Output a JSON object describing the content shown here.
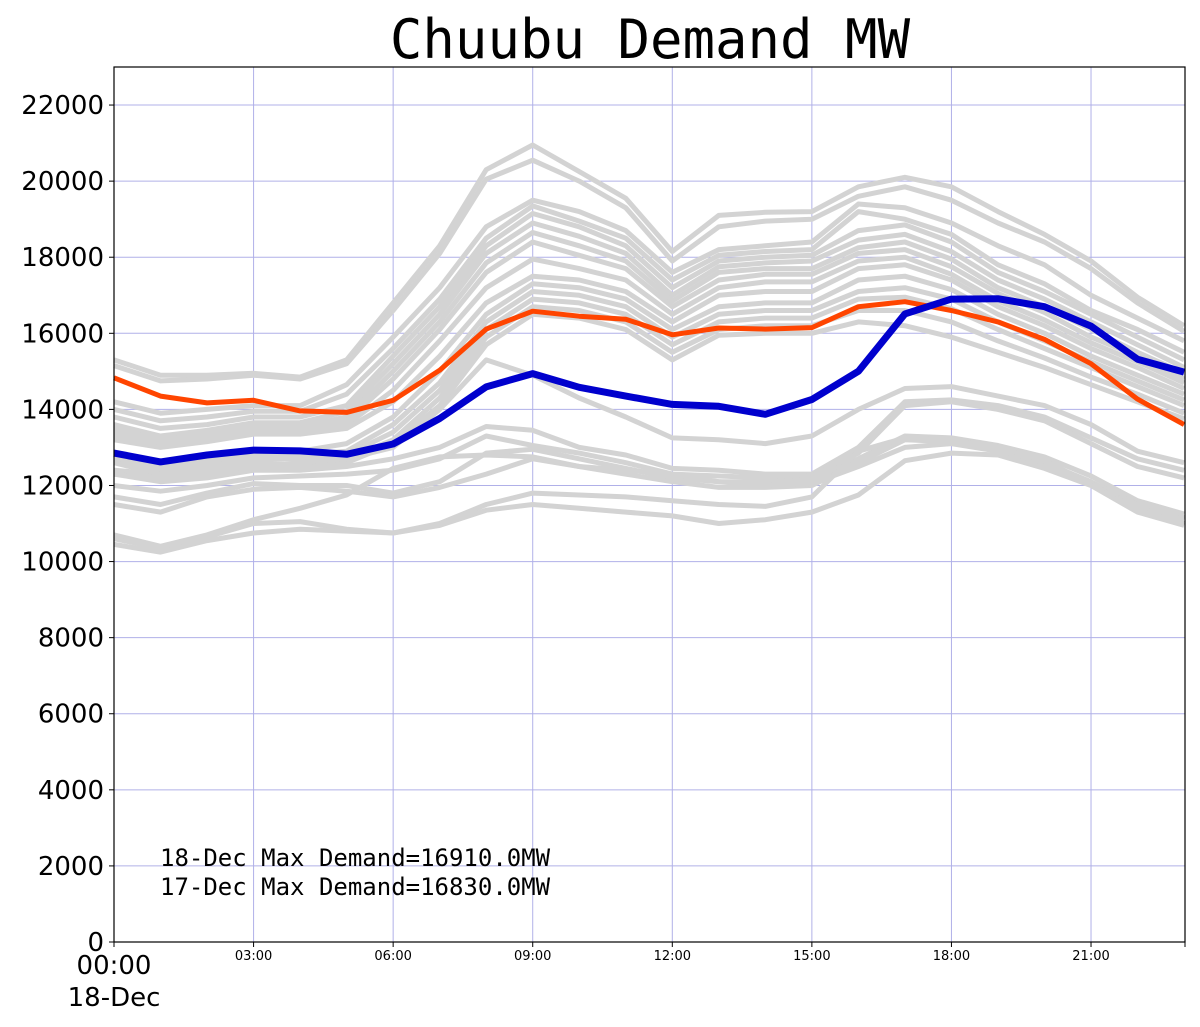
{
  "chart_data": {
    "type": "line",
    "title": "Chuubu Demand MW",
    "xlabel": "",
    "ylabel": "",
    "ylim": [
      0,
      23000
    ],
    "xlim": [
      0,
      23
    ],
    "grid": true,
    "yticks": [
      0,
      2000,
      4000,
      6000,
      8000,
      10000,
      12000,
      14000,
      16000,
      18000,
      20000,
      22000
    ],
    "xticks": [
      {
        "x": 0,
        "label": "00:00",
        "sublabel": "18-Dec"
      },
      {
        "x": 3,
        "label": "03:00"
      },
      {
        "x": 6,
        "label": "06:00"
      },
      {
        "x": 9,
        "label": "09:00"
      },
      {
        "x": 12,
        "label": "12:00"
      },
      {
        "x": 15,
        "label": "15:00"
      },
      {
        "x": 18,
        "label": "18:00"
      },
      {
        "x": 21,
        "label": "21:00"
      }
    ],
    "annotations": [
      "18-Dec Max Demand=16910.0MW",
      "17-Dec Max Demand=16830.0MW"
    ],
    "colors": {
      "history": "#d3d3d3",
      "today": "#0000cd",
      "yesterday": "#ff4500",
      "grid": "#b0b0e8"
    },
    "x": [
      0,
      1,
      2,
      3,
      4,
      5,
      6,
      7,
      8,
      9,
      10,
      11,
      12,
      13,
      14,
      15,
      16,
      17,
      18,
      19,
      20,
      21,
      22,
      23
    ],
    "history": [
      [
        15300,
        14900,
        14900,
        14950,
        14850,
        15300,
        16800,
        18300,
        20300,
        20950,
        20250,
        19550,
        18150,
        19100,
        19180,
        19200,
        19850,
        20100,
        19850,
        19200,
        18600,
        17900,
        16950,
        16200
      ],
      [
        15150,
        14750,
        14800,
        14900,
        14800,
        15200,
        16600,
        18100,
        20050,
        20550,
        20000,
        19300,
        17900,
        18800,
        18950,
        19000,
        19600,
        19850,
        19500,
        18900,
        18400,
        17700,
        16800,
        16050
      ],
      [
        14200,
        13900,
        14000,
        14100,
        14100,
        14650,
        15900,
        17200,
        18800,
        19500,
        19200,
        18700,
        17600,
        18200,
        18300,
        18400,
        19400,
        19300,
        18900,
        18300,
        17800,
        17000,
        16400,
        15800
      ],
      [
        14000,
        13700,
        13800,
        13950,
        13950,
        14400,
        15600,
        16900,
        18500,
        19350,
        18950,
        18500,
        17400,
        18050,
        18150,
        18200,
        19200,
        19000,
        18600,
        17800,
        17300,
        16600,
        16100,
        15500
      ],
      [
        13800,
        13500,
        13600,
        13800,
        13800,
        14100,
        15400,
        16700,
        18300,
        19150,
        18800,
        18300,
        17200,
        17900,
        18000,
        18050,
        18700,
        18850,
        18400,
        17600,
        17100,
        16500,
        15900,
        15300
      ],
      [
        13600,
        13300,
        13450,
        13650,
        13650,
        13950,
        15200,
        16500,
        18100,
        18900,
        18550,
        18100,
        17000,
        17750,
        17850,
        17900,
        18450,
        18600,
        18150,
        17400,
        16900,
        16300,
        15700,
        15100
      ],
      [
        13500,
        13200,
        13350,
        13550,
        13550,
        13800,
        15000,
        16300,
        17850,
        18650,
        18300,
        17900,
        16850,
        17600,
        17700,
        17700,
        18250,
        18400,
        17950,
        17200,
        16700,
        16100,
        15500,
        14950
      ],
      [
        13400,
        13200,
        13300,
        13500,
        13500,
        13700,
        14800,
        16100,
        17600,
        18400,
        18050,
        17700,
        16700,
        17400,
        17550,
        17550,
        18100,
        18200,
        17750,
        17050,
        16550,
        15900,
        15400,
        14800
      ],
      [
        13300,
        13100,
        13200,
        13400,
        13400,
        13600,
        14500,
        15800,
        17200,
        17950,
        17700,
        17400,
        16500,
        17200,
        17350,
        17350,
        17900,
        18000,
        17550,
        16850,
        16350,
        15750,
        15250,
        14700
      ],
      [
        13200,
        13000,
        13150,
        13350,
        13350,
        13500,
        14200,
        15400,
        16800,
        17500,
        17400,
        17100,
        16300,
        17000,
        17100,
        17100,
        17700,
        17800,
        17400,
        16700,
        16200,
        15600,
        15100,
        14550
      ],
      [
        12800,
        12600,
        12700,
        12900,
        12900,
        13100,
        13800,
        15000,
        16500,
        17300,
        17200,
        16900,
        16100,
        16700,
        16800,
        16800,
        17400,
        17500,
        17150,
        16500,
        16000,
        15400,
        14900,
        14400
      ],
      [
        12700,
        12500,
        12600,
        12800,
        12800,
        12900,
        13600,
        14700,
        16300,
        17100,
        17000,
        16700,
        15900,
        16500,
        16600,
        16600,
        17100,
        17200,
        16900,
        16300,
        15800,
        15250,
        14750,
        14250
      ],
      [
        12600,
        12400,
        12500,
        12700,
        12700,
        12800,
        13400,
        14500,
        16100,
        16900,
        16800,
        16500,
        15700,
        16300,
        16400,
        16400,
        16900,
        16950,
        16650,
        16100,
        15600,
        15100,
        14600,
        14100
      ],
      [
        12400,
        12300,
        12400,
        12600,
        12550,
        12700,
        13200,
        14300,
        15900,
        16700,
        16600,
        16300,
        15500,
        16100,
        16200,
        16200,
        16600,
        16600,
        16300,
        15800,
        15350,
        14850,
        14400,
        13900
      ],
      [
        12300,
        12200,
        12300,
        12500,
        12500,
        12600,
        13100,
        14100,
        15700,
        16500,
        16400,
        16100,
        15300,
        15950,
        16000,
        16000,
        16300,
        16200,
        15900,
        15500,
        15100,
        14650,
        14200,
        13750
      ],
      [
        12600,
        12300,
        12400,
        12500,
        12600,
        12700,
        13000,
        14000,
        15300,
        14900,
        14300,
        13800,
        13250,
        13200,
        13100,
        13300,
        14000,
        14550,
        14600,
        14350,
        14100,
        13600,
        12900,
        12600
      ],
      [
        12300,
        12100,
        12200,
        12400,
        12400,
        12500,
        12700,
        13000,
        13550,
        13450,
        13000,
        12800,
        12450,
        12400,
        12300,
        12300,
        13000,
        14200,
        14250,
        14100,
        13800,
        13250,
        12700,
        12400
      ],
      [
        12000,
        11850,
        12000,
        12200,
        12250,
        12300,
        12400,
        12700,
        13300,
        13050,
        12850,
        12600,
        12300,
        12250,
        12200,
        12250,
        12850,
        14100,
        14200,
        14000,
        13700,
        13100,
        12500,
        12200
      ],
      [
        11700,
        11500,
        11800,
        12050,
        12000,
        12000,
        11800,
        12100,
        12850,
        12950,
        12700,
        12450,
        12200,
        12100,
        12100,
        12150,
        12700,
        13300,
        13250,
        13050,
        12750,
        12250,
        11600,
        11250
      ],
      [
        11500,
        11300,
        11700,
        11900,
        11950,
        11850,
        11700,
        11950,
        12300,
        12700,
        12500,
        12300,
        12100,
        11950,
        11950,
        12000,
        12600,
        13200,
        13150,
        12900,
        12600,
        12100,
        11500,
        11150
      ],
      [
        10700,
        10400,
        10700,
        11100,
        11400,
        11750,
        12450,
        12750,
        12800,
        12750,
        12500,
        12400,
        12300,
        12100,
        12000,
        12050,
        12500,
        13000,
        13100,
        12900,
        12500,
        12050,
        11400,
        11100
      ],
      [
        10600,
        10350,
        10650,
        11000,
        11050,
        10850,
        10750,
        11000,
        11500,
        11800,
        11750,
        11700,
        11600,
        11500,
        11450,
        11700,
        12900,
        13250,
        13200,
        13000,
        12650,
        12050,
        11350,
        11000
      ],
      [
        10450,
        10250,
        10550,
        10750,
        10850,
        10800,
        10750,
        10950,
        11350,
        11500,
        11400,
        11300,
        11200,
        11000,
        11100,
        11300,
        11750,
        12650,
        12850,
        12800,
        12450,
        12000,
        11300,
        10950
      ]
    ],
    "series": [
      {
        "name": "17-Dec",
        "role": "yesterday",
        "values": [
          14830,
          14350,
          14170,
          14240,
          13960,
          13920,
          14240,
          15030,
          16110,
          16580,
          16450,
          16370,
          15960,
          16140,
          16110,
          16150,
          16700,
          16830,
          16600,
          16300,
          15840,
          15200,
          14270,
          13600
        ]
      },
      {
        "name": "18-Dec",
        "role": "today",
        "values": [
          12850,
          12620,
          12800,
          12930,
          12910,
          12820,
          13090,
          13760,
          14590,
          14940,
          14580,
          14350,
          14130,
          14080,
          13870,
          14260,
          15000,
          16510,
          16900,
          16910,
          16700,
          16190,
          15320,
          14980
        ]
      }
    ]
  }
}
